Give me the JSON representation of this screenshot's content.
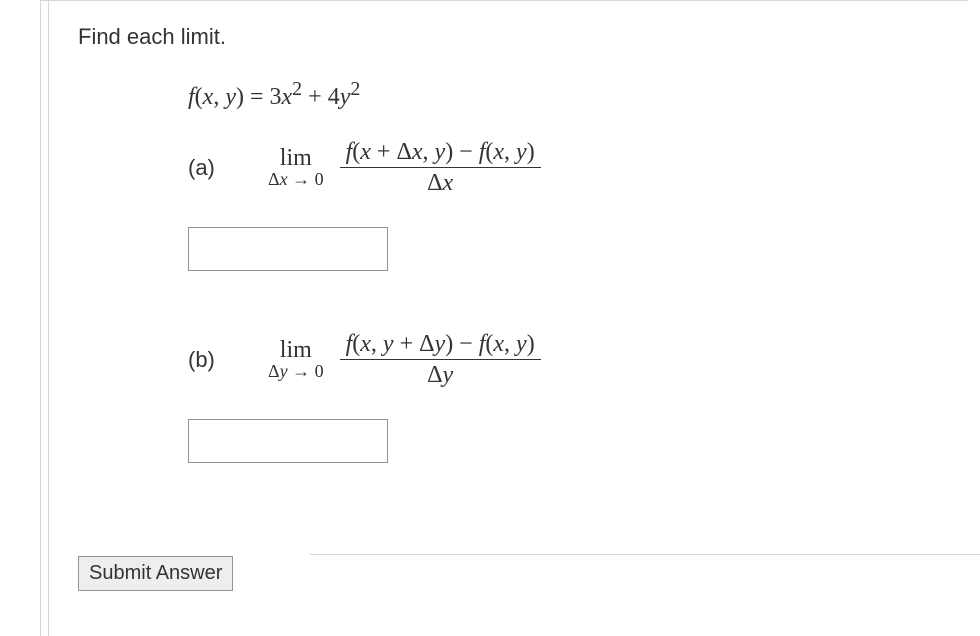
{
  "prompt": "Find each limit.",
  "function_def_html": "<span class='nrm'></span>f<span class='nrm'>(</span>x<span class='nrm'>, </span>y<span class='nrm'>) = 3</span>x<span class='nrm'><sup>2</sup> + 4</span>y<span class='nrm'><sup>2</sup></span>",
  "parts": {
    "a": {
      "label": "(a)",
      "lim_top": "lim",
      "lim_bot_html": "Δ<span style='font-style:italic'>x</span> → 0",
      "frac_num_html": "f<span class='nrm'>(</span>x<span class='nrm'> + Δ</span>x<span class='nrm'>, </span>y<span class='nrm'>) − </span>f<span class='nrm'>(</span>x<span class='nrm'>, </span>y<span class='nrm'>)</span>",
      "frac_den_html": "<span class='nrm'>Δ</span>x"
    },
    "b": {
      "label": "(b)",
      "lim_top": "lim",
      "lim_bot_html": "Δ<span style='font-style:italic'>y</span> → 0",
      "frac_num_html": "f<span class='nrm'>(</span>x<span class='nrm'>, </span>y<span class='nrm'> + Δ</span>y<span class='nrm'>) − </span>f<span class='nrm'>(</span>x<span class='nrm'>, </span>y<span class='nrm'>)</span>",
      "frac_den_html": "<span class='nrm'>Δ</span>y"
    }
  },
  "answers": {
    "a": "",
    "b": ""
  },
  "submit_label": "Submit Answer",
  "colors": {
    "text": "#333333",
    "border_light": "#d8d8d8",
    "border_input": "#949494",
    "button_bg": "#eeeeee",
    "background": "#ffffff"
  },
  "fonts": {
    "ui": "Arial, Helvetica, sans-serif",
    "math": "Georgia, 'Times New Roman', serif",
    "prompt_size": 22,
    "math_size": 24
  }
}
